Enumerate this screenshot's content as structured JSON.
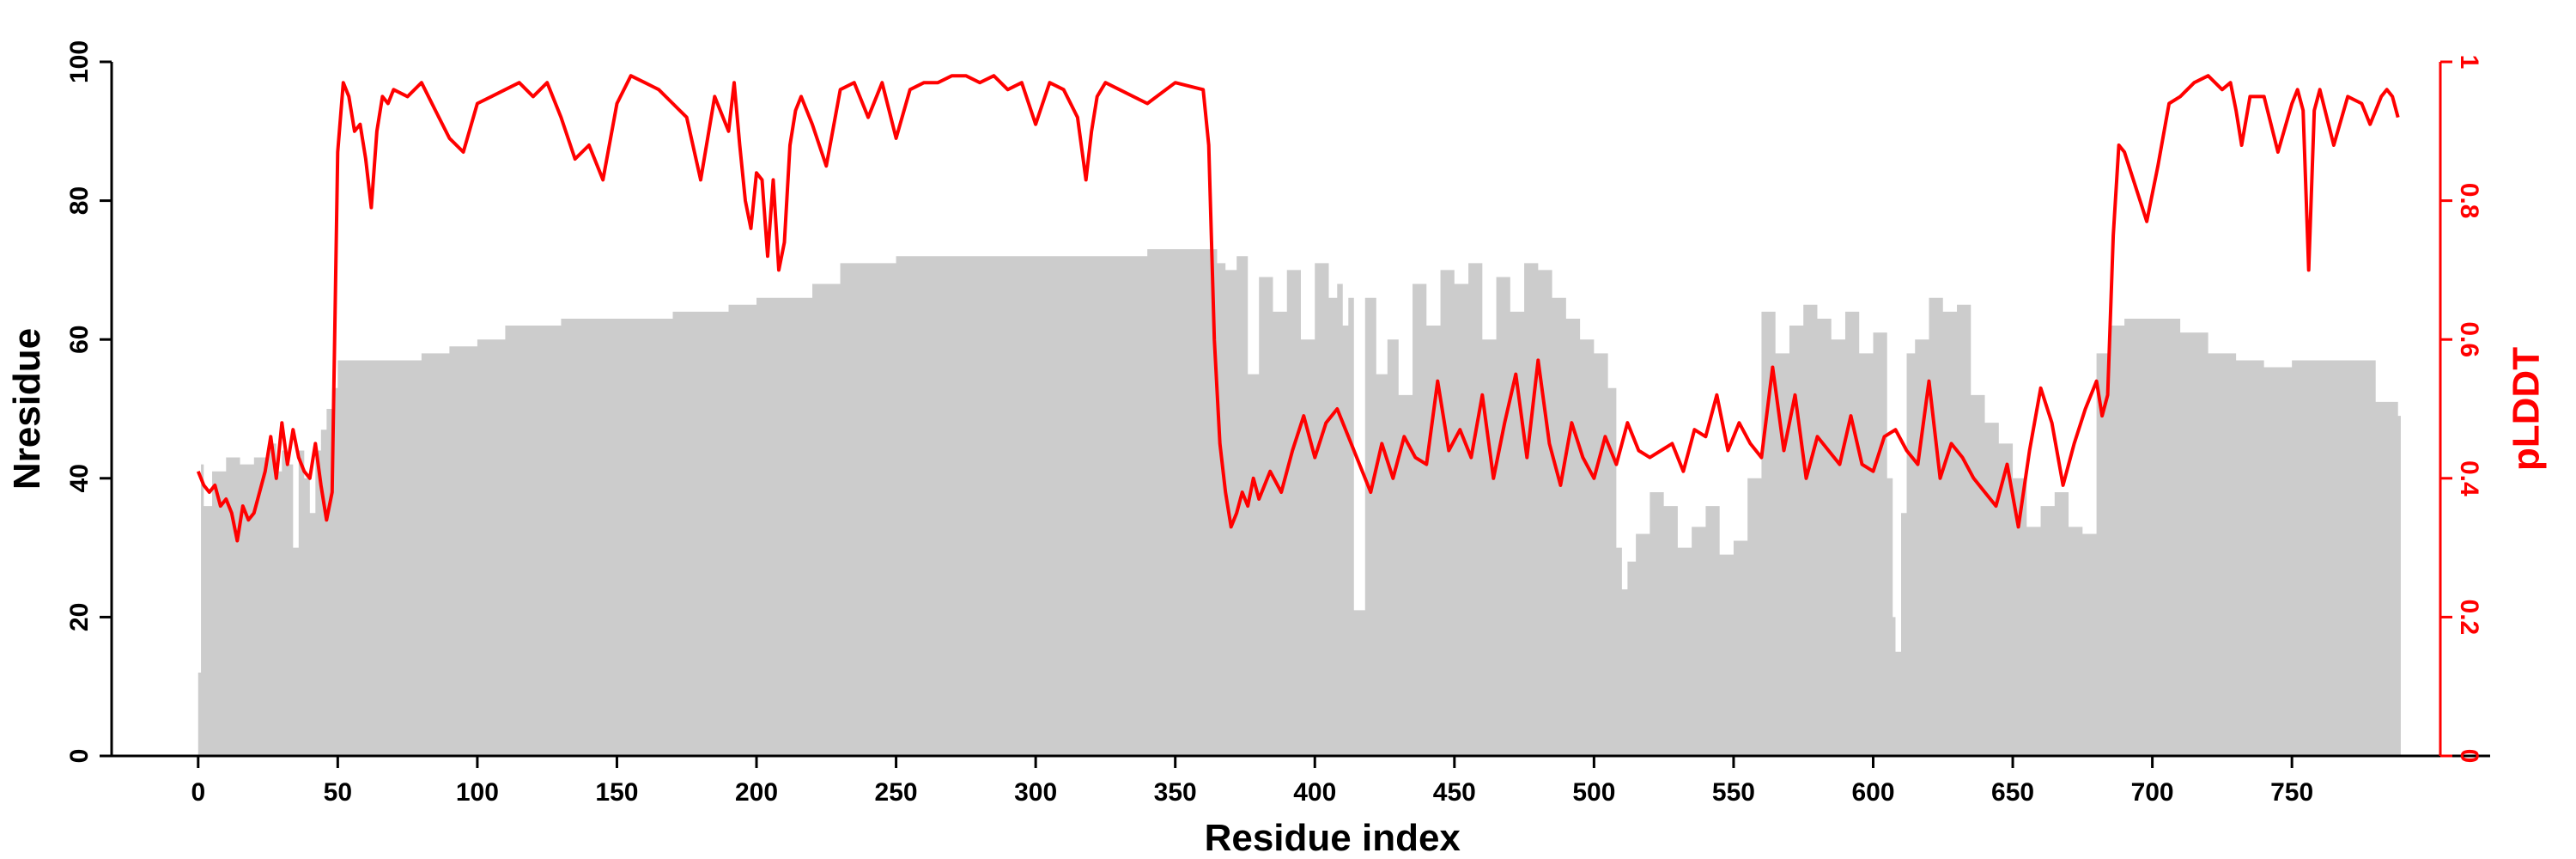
{
  "chart_data": {
    "type": "area+line",
    "title": "",
    "xlabel": "Residue index",
    "ylabel_left": "Nresidue",
    "ylabel_right": "pLDDT",
    "xlim": [
      -31,
      821
    ],
    "ylim_left": [
      0,
      100
    ],
    "ylim_right": [
      0,
      1
    ],
    "x_ticks": [
      0,
      50,
      100,
      150,
      200,
      250,
      300,
      350,
      400,
      450,
      500,
      550,
      600,
      650,
      700,
      750
    ],
    "y_ticks_left": [
      0,
      20,
      40,
      60,
      80,
      100
    ],
    "y_ticks_right": [
      0,
      0.2,
      0.4,
      0.6,
      0.8,
      1
    ],
    "grid": false,
    "colors": {
      "coverage": "#cccccc",
      "plddt": "#ff0000",
      "axis": "#000000"
    },
    "coverage": {
      "name": "",
      "x": [
        0,
        1,
        2,
        5,
        10,
        15,
        20,
        25,
        28,
        30,
        32,
        34,
        36,
        38,
        40,
        42,
        44,
        46,
        48,
        50,
        60,
        70,
        80,
        90,
        100,
        110,
        130,
        150,
        170,
        190,
        200,
        210,
        220,
        230,
        250,
        300,
        320,
        340,
        350,
        360,
        365,
        368,
        372,
        376,
        380,
        385,
        390,
        395,
        400,
        405,
        408,
        410,
        412,
        414,
        418,
        422,
        426,
        430,
        435,
        440,
        445,
        450,
        455,
        460,
        465,
        470,
        475,
        480,
        485,
        490,
        495,
        500,
        505,
        508,
        510,
        512,
        515,
        520,
        525,
        530,
        535,
        540,
        545,
        550,
        555,
        560,
        565,
        570,
        575,
        580,
        585,
        590,
        595,
        600,
        605,
        607,
        608,
        610,
        612,
        615,
        620,
        625,
        630,
        635,
        640,
        645,
        650,
        655,
        660,
        665,
        670,
        675,
        680,
        685,
        690,
        700,
        710,
        720,
        730,
        740,
        750,
        770,
        780,
        788
      ],
      "values": [
        12,
        42,
        36,
        41,
        43,
        42,
        43,
        45,
        41,
        44,
        42,
        30,
        44,
        40,
        35,
        44,
        47,
        50,
        53,
        57,
        57,
        57,
        58,
        59,
        60,
        62,
        63,
        63,
        64,
        65,
        66,
        66,
        68,
        71,
        72,
        72,
        72,
        73,
        73,
        73,
        71,
        70,
        72,
        55,
        69,
        64,
        70,
        60,
        71,
        66,
        68,
        62,
        66,
        21,
        66,
        55,
        60,
        52,
        68,
        62,
        70,
        68,
        71,
        60,
        69,
        64,
        71,
        70,
        66,
        63,
        60,
        58,
        53,
        30,
        24,
        28,
        32,
        38,
        36,
        30,
        33,
        36,
        29,
        31,
        40,
        64,
        58,
        62,
        65,
        63,
        60,
        64,
        58,
        61,
        40,
        20,
        15,
        35,
        58,
        60,
        66,
        64,
        65,
        52,
        48,
        45,
        40,
        33,
        36,
        38,
        33,
        32,
        58,
        62,
        63,
        63,
        61,
        58,
        57,
        56,
        57,
        57,
        51,
        49
      ]
    },
    "plddt": {
      "name": "pLDDT",
      "x": [
        0,
        2,
        4,
        6,
        8,
        10,
        12,
        14,
        16,
        18,
        20,
        22,
        24,
        26,
        28,
        30,
        32,
        34,
        36,
        38,
        40,
        42,
        44,
        46,
        48,
        50,
        52,
        54,
        56,
        58,
        60,
        62,
        64,
        66,
        68,
        70,
        75,
        80,
        85,
        90,
        95,
        100,
        105,
        110,
        115,
        120,
        125,
        130,
        135,
        140,
        145,
        150,
        155,
        160,
        165,
        170,
        175,
        180,
        185,
        190,
        192,
        194,
        196,
        198,
        200,
        202,
        204,
        206,
        208,
        210,
        212,
        214,
        216,
        220,
        225,
        230,
        235,
        240,
        245,
        250,
        255,
        260,
        265,
        270,
        275,
        280,
        285,
        290,
        295,
        300,
        305,
        310,
        315,
        318,
        320,
        322,
        325,
        330,
        340,
        350,
        360,
        362,
        364,
        366,
        368,
        370,
        372,
        374,
        376,
        378,
        380,
        384,
        388,
        392,
        396,
        400,
        404,
        408,
        412,
        416,
        420,
        424,
        428,
        432,
        436,
        440,
        444,
        448,
        452,
        456,
        460,
        464,
        468,
        472,
        476,
        480,
        484,
        488,
        492,
        496,
        500,
        504,
        508,
        512,
        516,
        520,
        524,
        528,
        532,
        536,
        540,
        544,
        548,
        552,
        556,
        560,
        564,
        568,
        572,
        576,
        580,
        584,
        588,
        592,
        596,
        600,
        604,
        608,
        612,
        616,
        620,
        624,
        628,
        632,
        636,
        640,
        644,
        648,
        652,
        656,
        660,
        664,
        668,
        672,
        676,
        680,
        682,
        684,
        686,
        688,
        690,
        694,
        698,
        702,
        706,
        710,
        715,
        720,
        725,
        728,
        730,
        732,
        735,
        740,
        745,
        750,
        752,
        754,
        756,
        758,
        760,
        765,
        770,
        775,
        778,
        780,
        782,
        784,
        786,
        788
      ],
      "values": [
        0.41,
        0.39,
        0.38,
        0.39,
        0.36,
        0.37,
        0.35,
        0.31,
        0.36,
        0.34,
        0.35,
        0.38,
        0.41,
        0.46,
        0.4,
        0.48,
        0.42,
        0.47,
        0.43,
        0.41,
        0.4,
        0.45,
        0.39,
        0.34,
        0.38,
        0.87,
        0.97,
        0.95,
        0.9,
        0.91,
        0.86,
        0.79,
        0.9,
        0.95,
        0.94,
        0.96,
        0.95,
        0.97,
        0.93,
        0.89,
        0.87,
        0.94,
        0.95,
        0.96,
        0.97,
        0.95,
        0.97,
        0.92,
        0.86,
        0.88,
        0.83,
        0.94,
        0.98,
        0.97,
        0.96,
        0.94,
        0.92,
        0.83,
        0.95,
        0.9,
        0.97,
        0.88,
        0.8,
        0.76,
        0.84,
        0.83,
        0.72,
        0.83,
        0.7,
        0.74,
        0.88,
        0.93,
        0.95,
        0.91,
        0.85,
        0.96,
        0.97,
        0.92,
        0.97,
        0.89,
        0.96,
        0.97,
        0.97,
        0.98,
        0.98,
        0.97,
        0.98,
        0.96,
        0.97,
        0.91,
        0.97,
        0.96,
        0.92,
        0.83,
        0.9,
        0.95,
        0.97,
        0.96,
        0.94,
        0.97,
        0.96,
        0.88,
        0.6,
        0.45,
        0.38,
        0.33,
        0.35,
        0.38,
        0.36,
        0.4,
        0.37,
        0.41,
        0.38,
        0.44,
        0.49,
        0.43,
        0.48,
        0.5,
        0.46,
        0.42,
        0.38,
        0.45,
        0.4,
        0.46,
        0.43,
        0.42,
        0.54,
        0.44,
        0.47,
        0.43,
        0.52,
        0.4,
        0.48,
        0.55,
        0.43,
        0.57,
        0.45,
        0.39,
        0.48,
        0.43,
        0.4,
        0.46,
        0.42,
        0.48,
        0.44,
        0.43,
        0.44,
        0.45,
        0.41,
        0.47,
        0.46,
        0.52,
        0.44,
        0.48,
        0.45,
        0.43,
        0.56,
        0.44,
        0.52,
        0.4,
        0.46,
        0.44,
        0.42,
        0.49,
        0.42,
        0.41,
        0.46,
        0.47,
        0.44,
        0.42,
        0.54,
        0.4,
        0.45,
        0.43,
        0.4,
        0.38,
        0.36,
        0.42,
        0.33,
        0.44,
        0.53,
        0.48,
        0.39,
        0.45,
        0.5,
        0.54,
        0.49,
        0.52,
        0.75,
        0.88,
        0.87,
        0.82,
        0.77,
        0.85,
        0.94,
        0.95,
        0.97,
        0.98,
        0.96,
        0.97,
        0.93,
        0.88,
        0.95,
        0.95,
        0.87,
        0.94,
        0.96,
        0.93,
        0.7,
        0.93,
        0.96,
        0.88,
        0.95,
        0.94,
        0.91,
        0.93,
        0.95,
        0.96,
        0.95,
        0.92
      ]
    }
  }
}
